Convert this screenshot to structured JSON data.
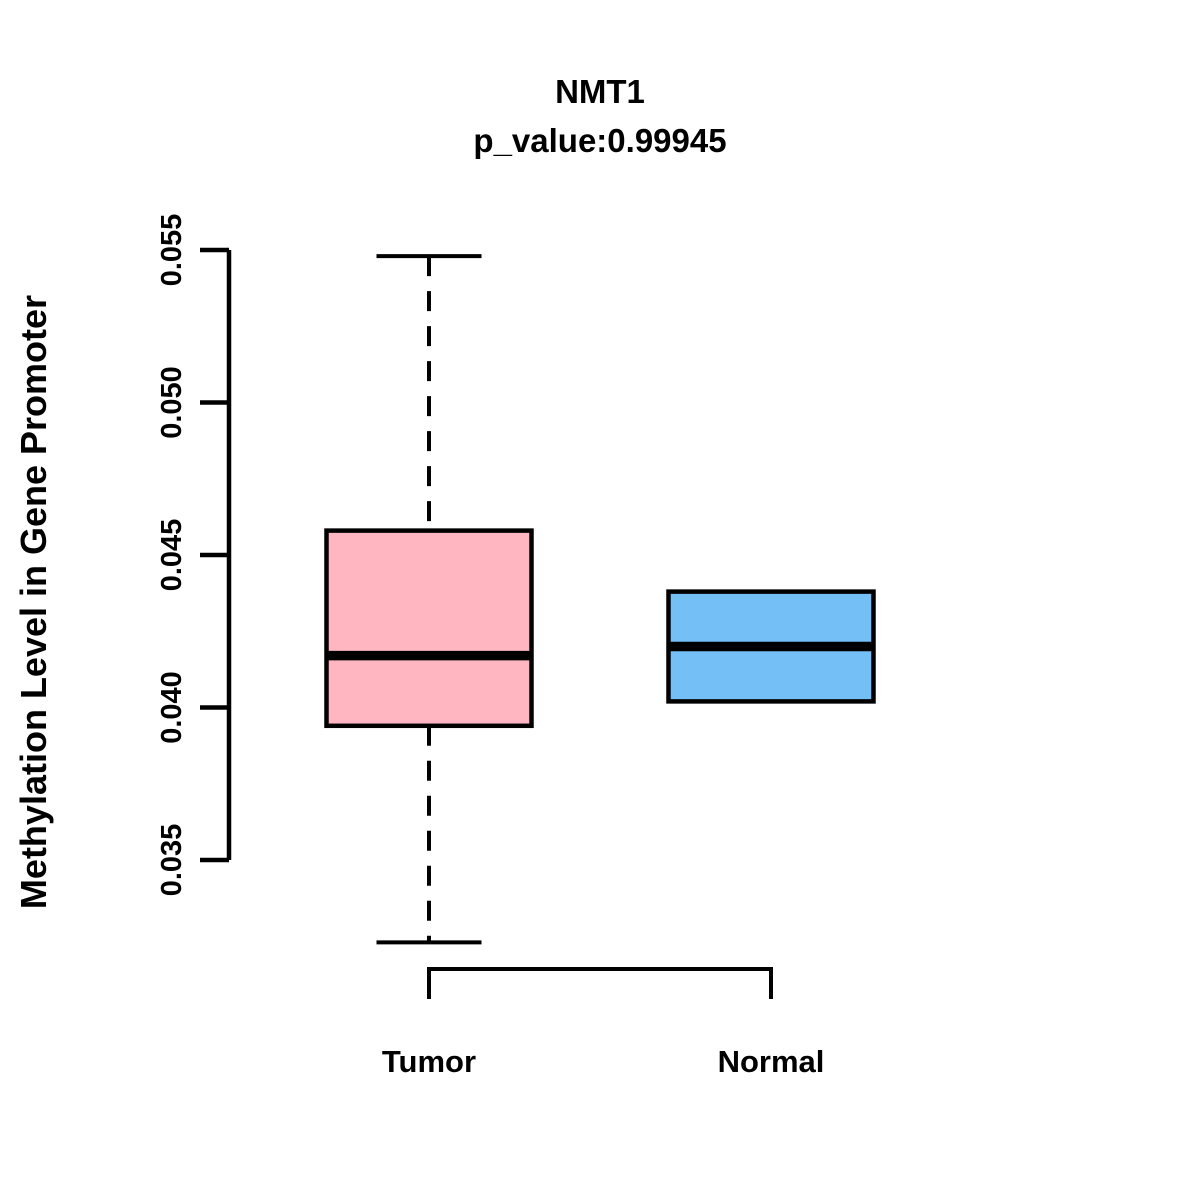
{
  "title": "NMT1",
  "subtitle": "p_value:0.99945",
  "y_axis": {
    "label": "Methylation Level in Gene Promoter",
    "tick_labels": [
      "0.035",
      "0.040",
      "0.045",
      "0.050",
      "0.055"
    ],
    "tick_values": [
      0.035,
      0.04,
      0.045,
      0.05,
      0.055
    ]
  },
  "x_axis": {
    "categories": [
      "Tumor",
      "Normal"
    ]
  },
  "colors": {
    "tumor_fill": "#FFB6C1",
    "normal_fill": "#75BFF7",
    "stroke": "#000000",
    "background": "#FFFFFF"
  },
  "chart_data": {
    "type": "boxplot",
    "title": "NMT1",
    "subtitle": "p_value:0.99945",
    "ylabel": "Methylation Level in Gene Promoter",
    "xlabel": "",
    "ylim": [
      0.032,
      0.055
    ],
    "yticks": [
      0.035,
      0.04,
      0.045,
      0.05,
      0.055
    ],
    "grid": false,
    "legend": "none",
    "categories": [
      "Tumor",
      "Normal"
    ],
    "series": [
      {
        "name": "Tumor",
        "fill": "#FFB6C1",
        "q1": 0.0394,
        "median": 0.0417,
        "q3": 0.0458,
        "whisker_low": 0.0323,
        "whisker_high": 0.0548,
        "whiskers_visible": true,
        "outliers": []
      },
      {
        "name": "Normal",
        "fill": "#75BFF7",
        "q1": 0.0402,
        "median": 0.042,
        "q3": 0.0438,
        "whisker_low": 0.0402,
        "whisker_high": 0.0438,
        "whiskers_visible": false,
        "outliers": []
      }
    ]
  }
}
